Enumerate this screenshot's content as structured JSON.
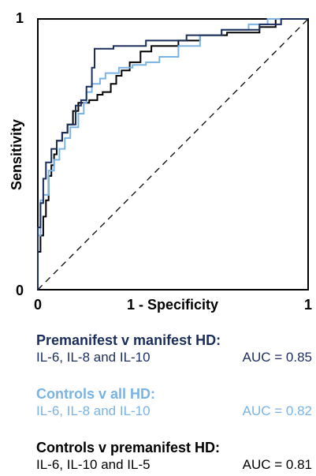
{
  "chart_data": {
    "type": "line",
    "title": "",
    "xlabel": "1 - Specificity",
    "ylabel": "Sensitivity",
    "xlim": [
      0,
      1
    ],
    "ylim": [
      0,
      1
    ],
    "x_ticks": [
      "0",
      "1"
    ],
    "y_ticks": [
      "0",
      "1"
    ],
    "grid": false,
    "diagonal_reference": true,
    "series": [
      {
        "name": "Controls v premanifest HD",
        "color": "#000000",
        "points": [
          [
            0,
            0
          ],
          [
            0,
            0.14
          ],
          [
            0.01,
            0.14
          ],
          [
            0.01,
            0.2
          ],
          [
            0.02,
            0.2
          ],
          [
            0.02,
            0.27
          ],
          [
            0.03,
            0.27
          ],
          [
            0.03,
            0.33
          ],
          [
            0.04,
            0.33
          ],
          [
            0.04,
            0.42
          ],
          [
            0.05,
            0.42
          ],
          [
            0.05,
            0.46
          ],
          [
            0.06,
            0.46
          ],
          [
            0.06,
            0.5
          ],
          [
            0.07,
            0.5
          ],
          [
            0.07,
            0.55
          ],
          [
            0.09,
            0.55
          ],
          [
            0.09,
            0.58
          ],
          [
            0.11,
            0.58
          ],
          [
            0.11,
            0.61
          ],
          [
            0.13,
            0.61
          ],
          [
            0.13,
            0.66
          ],
          [
            0.15,
            0.66
          ],
          [
            0.15,
            0.69
          ],
          [
            0.19,
            0.69
          ],
          [
            0.19,
            0.7
          ],
          [
            0.22,
            0.7
          ],
          [
            0.22,
            0.72
          ],
          [
            0.24,
            0.72
          ],
          [
            0.24,
            0.73
          ],
          [
            0.27,
            0.73
          ],
          [
            0.27,
            0.76
          ],
          [
            0.29,
            0.76
          ],
          [
            0.29,
            0.79
          ],
          [
            0.31,
            0.79
          ],
          [
            0.31,
            0.81
          ],
          [
            0.34,
            0.81
          ],
          [
            0.34,
            0.84
          ],
          [
            0.38,
            0.84
          ],
          [
            0.38,
            0.88
          ],
          [
            0.42,
            0.88
          ],
          [
            0.42,
            0.9
          ],
          [
            0.52,
            0.9
          ],
          [
            0.52,
            0.92
          ],
          [
            0.6,
            0.92
          ],
          [
            0.6,
            0.94
          ],
          [
            0.7,
            0.94
          ],
          [
            0.7,
            0.95
          ],
          [
            0.82,
            0.95
          ],
          [
            0.82,
            0.97
          ],
          [
            0.88,
            0.97
          ],
          [
            0.88,
            1
          ],
          [
            1,
            1
          ]
        ]
      },
      {
        "name": "Controls v all HD",
        "color": "#7ab3e3",
        "points": [
          [
            0,
            0
          ],
          [
            0,
            0.2
          ],
          [
            0.01,
            0.2
          ],
          [
            0.01,
            0.33
          ],
          [
            0.02,
            0.33
          ],
          [
            0.02,
            0.35
          ],
          [
            0.04,
            0.35
          ],
          [
            0.04,
            0.44
          ],
          [
            0.06,
            0.44
          ],
          [
            0.06,
            0.48
          ],
          [
            0.08,
            0.48
          ],
          [
            0.08,
            0.52
          ],
          [
            0.1,
            0.52
          ],
          [
            0.1,
            0.56
          ],
          [
            0.12,
            0.56
          ],
          [
            0.12,
            0.6
          ],
          [
            0.15,
            0.6
          ],
          [
            0.15,
            0.65
          ],
          [
            0.17,
            0.65
          ],
          [
            0.17,
            0.69
          ],
          [
            0.18,
            0.69
          ],
          [
            0.18,
            0.73
          ],
          [
            0.2,
            0.73
          ],
          [
            0.2,
            0.76
          ],
          [
            0.23,
            0.76
          ],
          [
            0.23,
            0.78
          ],
          [
            0.25,
            0.78
          ],
          [
            0.25,
            0.8
          ],
          [
            0.3,
            0.8
          ],
          [
            0.3,
            0.82
          ],
          [
            0.35,
            0.82
          ],
          [
            0.35,
            0.83
          ],
          [
            0.4,
            0.83
          ],
          [
            0.4,
            0.84
          ],
          [
            0.45,
            0.84
          ],
          [
            0.45,
            0.86
          ],
          [
            0.52,
            0.86
          ],
          [
            0.52,
            0.9
          ],
          [
            0.6,
            0.9
          ],
          [
            0.6,
            0.94
          ],
          [
            0.68,
            0.94
          ],
          [
            0.68,
            0.96
          ],
          [
            0.78,
            0.96
          ],
          [
            0.78,
            0.98
          ],
          [
            0.85,
            0.98
          ],
          [
            0.85,
            1
          ],
          [
            1,
            1
          ]
        ]
      },
      {
        "name": "Premanifest v manifest HD",
        "color": "#1b2d5a",
        "points": [
          [
            0,
            0
          ],
          [
            0,
            0.23
          ],
          [
            0.01,
            0.23
          ],
          [
            0.01,
            0.32
          ],
          [
            0.02,
            0.32
          ],
          [
            0.02,
            0.41
          ],
          [
            0.03,
            0.41
          ],
          [
            0.03,
            0.47
          ],
          [
            0.05,
            0.47
          ],
          [
            0.05,
            0.52
          ],
          [
            0.07,
            0.52
          ],
          [
            0.07,
            0.55
          ],
          [
            0.09,
            0.55
          ],
          [
            0.09,
            0.58
          ],
          [
            0.11,
            0.58
          ],
          [
            0.11,
            0.61
          ],
          [
            0.14,
            0.61
          ],
          [
            0.14,
            0.68
          ],
          [
            0.16,
            0.68
          ],
          [
            0.16,
            0.7
          ],
          [
            0.18,
            0.7
          ],
          [
            0.18,
            0.75
          ],
          [
            0.2,
            0.75
          ],
          [
            0.2,
            0.82
          ],
          [
            0.21,
            0.82
          ],
          [
            0.21,
            0.89
          ],
          [
            0.28,
            0.89
          ],
          [
            0.28,
            0.9
          ],
          [
            0.4,
            0.9
          ],
          [
            0.4,
            0.92
          ],
          [
            0.55,
            0.92
          ],
          [
            0.55,
            0.94
          ],
          [
            0.68,
            0.94
          ],
          [
            0.68,
            0.96
          ],
          [
            0.82,
            0.96
          ],
          [
            0.82,
            0.98
          ],
          [
            0.9,
            0.98
          ],
          [
            0.9,
            1
          ],
          [
            1,
            1
          ]
        ]
      }
    ]
  },
  "legend": [
    {
      "title": "Premanifest v manifest HD:",
      "markers": "IL-6, IL-8 and IL-10",
      "auc": "AUC = 0.85",
      "color": "#1b2d5a"
    },
    {
      "title": "Controls v all HD:",
      "markers": "IL-6, IL-8 and IL-10",
      "auc": "AUC = 0.82",
      "color": "#7ab3e3"
    },
    {
      "title": "Controls v premanifest HD:",
      "markers": "IL-6, IL-10 and IL-5",
      "auc": "AUC = 0.81",
      "color": "#000000"
    }
  ]
}
